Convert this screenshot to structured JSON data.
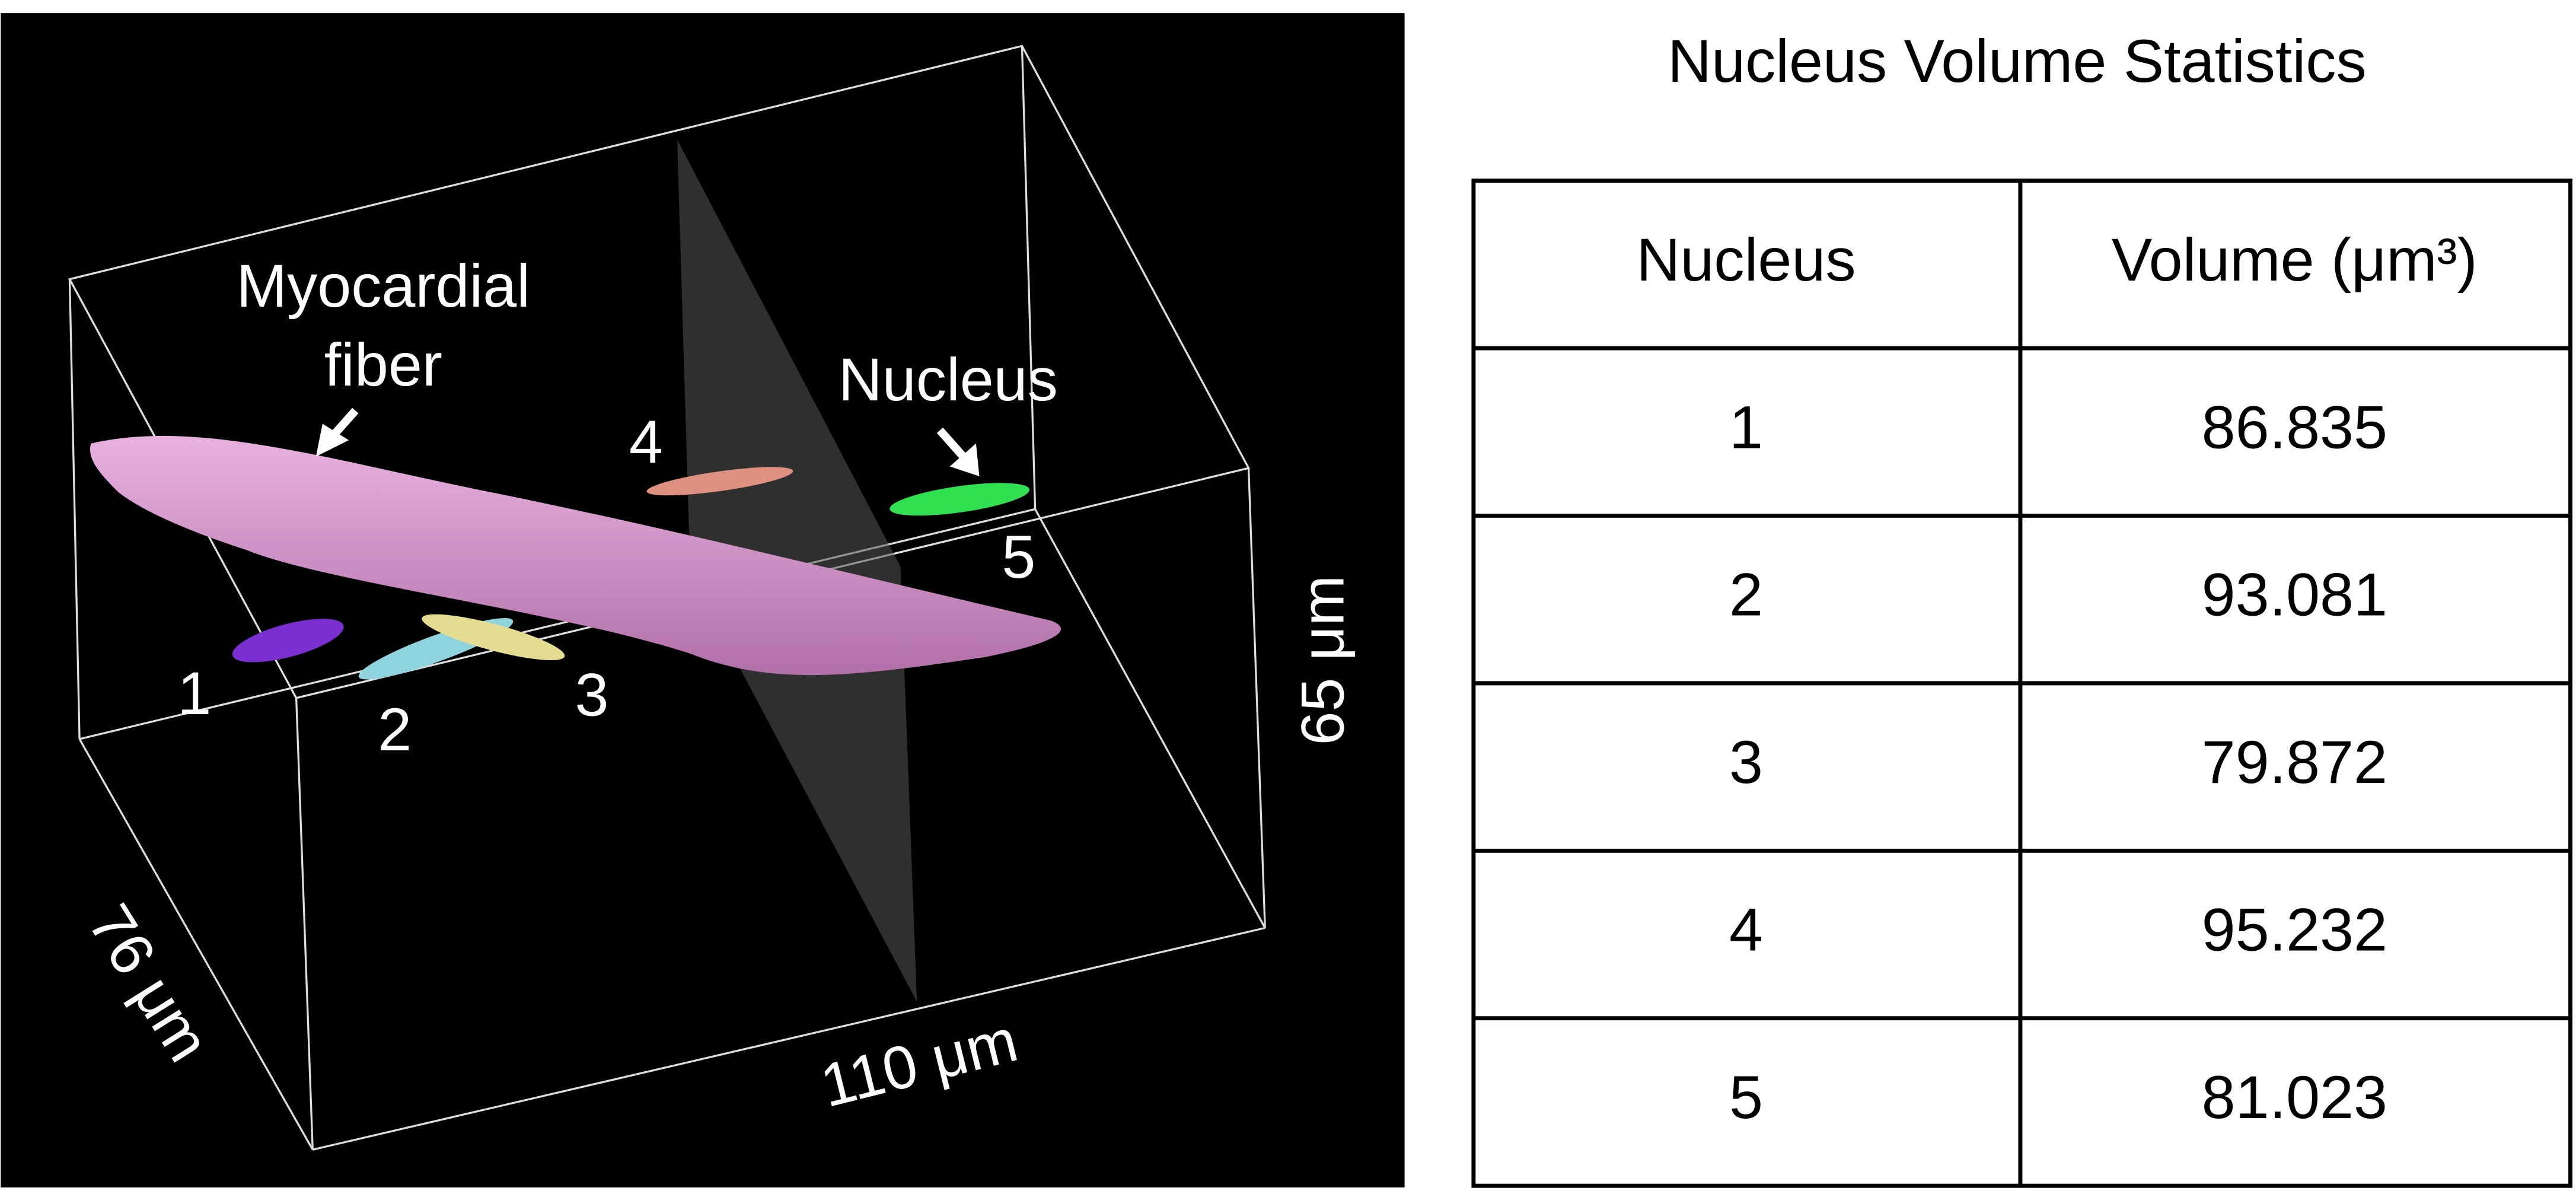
{
  "render": {
    "fiber_label": [
      "Myocardial",
      "fiber"
    ],
    "nucleus_label": "Nucleus",
    "nucleus_numbers": [
      "1",
      "2",
      "3",
      "4",
      "5"
    ],
    "dimensions": {
      "depth": "76 μm",
      "width": "110 μm",
      "height": "65 μm"
    }
  },
  "table": {
    "title": "Nucleus Volume Statistics",
    "header": [
      "Nucleus",
      "Volume (μm³)"
    ],
    "rows": [
      [
        "1",
        "86.835"
      ],
      [
        "2",
        "93.081"
      ],
      [
        "3",
        "79.872"
      ],
      [
        "4",
        "95.232"
      ],
      [
        "5",
        "81.023"
      ]
    ]
  }
}
